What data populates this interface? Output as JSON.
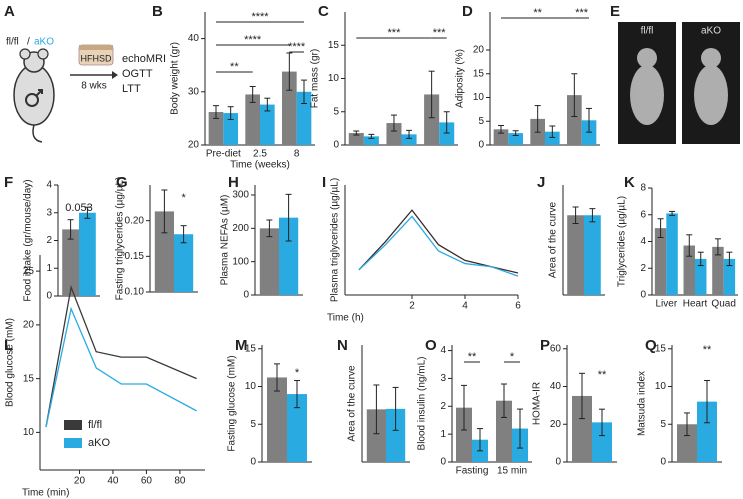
{
  "schematic": {
    "label": "A",
    "genotype": [
      "fl/fl",
      "/",
      "aKO"
    ],
    "diet": "HFHSD",
    "duration": "8 wks",
    "tests": [
      "echoMRI",
      "OGTT",
      "LTT"
    ]
  },
  "images": {
    "label": "E",
    "captions": [
      "fl/fl",
      "aKO"
    ]
  },
  "chart_data": [
    {
      "type": "bar",
      "label": "B",
      "ylabel": "Body weight (gr)",
      "xlabel": "Time (weeks)",
      "categories": [
        "Pre-diet",
        "2.5",
        "8"
      ],
      "series": [
        {
          "color": "#808080",
          "values": [
            26.2,
            29.5,
            33.8
          ],
          "errors": [
            1.2,
            1.5,
            3.5
          ]
        },
        {
          "color": "#29abe2",
          "values": [
            26,
            27.6,
            30
          ],
          "errors": [
            1.2,
            1.2,
            2.2
          ]
        }
      ],
      "ylim": [
        20,
        45
      ],
      "yticks": [
        20,
        30,
        40
      ],
      "annotations": [
        {
          "text": "****"
        },
        {
          "text": "****"
        },
        {
          "text": "**"
        },
        {
          "text": "****"
        }
      ]
    },
    {
      "type": "bar",
      "label": "C",
      "ylabel": "Fat mass (gr)",
      "categories": [
        null,
        null,
        null
      ],
      "series": [
        {
          "color": "#808080",
          "values": [
            1.8,
            3.3,
            7.6
          ],
          "errors": [
            0.3,
            1.2,
            3.5
          ]
        },
        {
          "color": "#29abe2",
          "values": [
            1.3,
            1.6,
            3.4
          ],
          "errors": [
            0.3,
            0.6,
            1.6
          ]
        }
      ],
      "ylim": [
        0,
        20
      ],
      "yticks": [
        0,
        5,
        10,
        15
      ],
      "annotations": [
        {
          "text": "***"
        },
        {
          "text": "***"
        }
      ]
    },
    {
      "type": "bar",
      "label": "D",
      "ylabel": "Adiposity (%)",
      "categories": [
        null,
        null,
        null
      ],
      "series": [
        {
          "color": "#808080",
          "values": [
            3.3,
            5.5,
            10.5
          ],
          "errors": [
            0.8,
            2.8,
            4.5
          ]
        },
        {
          "color": "#29abe2",
          "values": [
            2.5,
            2.8,
            5.2
          ],
          "errors": [
            0.5,
            1.2,
            2.5
          ]
        }
      ],
      "ylim": [
        0,
        28
      ],
      "yticks": [
        0,
        5,
        10,
        15,
        20
      ],
      "annotations": [
        {
          "text": "**"
        },
        {
          "text": "***"
        }
      ]
    },
    {
      "type": "bar",
      "label": "F",
      "ylabel": "Food intake (gr/mouse/day)",
      "categories": [
        null
      ],
      "series": [
        {
          "color": "#808080",
          "values": [
            2.4
          ],
          "errors": [
            0.35
          ]
        },
        {
          "color": "#29abe2",
          "values": [
            3.0
          ],
          "errors": [
            0.2
          ]
        }
      ],
      "ylim": [
        0,
        4
      ],
      "yticks": [
        0,
        1,
        2,
        3,
        4
      ],
      "annotations": [
        {
          "text": "0.053"
        }
      ]
    },
    {
      "type": "bar",
      "label": "G",
      "ylabel": "Fasting triglycerides (µg/µL)",
      "categories": [
        null
      ],
      "series": [
        {
          "color": "#808080",
          "values": [
            0.213
          ],
          "errors": [
            0.03
          ]
        },
        {
          "color": "#29abe2",
          "values": [
            0.181
          ],
          "errors": [
            0.012
          ]
        }
      ],
      "ylim": [
        0.1,
        0.25
      ],
      "yticks": [
        {
          "value": 0.1,
          "label": "0.10"
        },
        {
          "value": 0.15,
          "label": "0.15"
        },
        {
          "value": 0.2,
          "label": "0.20"
        }
      ],
      "annotations": [
        {
          "text": "*"
        }
      ]
    },
    {
      "type": "bar",
      "label": "H",
      "ylabel": "Plasma NEFAs (µM)",
      "categories": [
        null
      ],
      "series": [
        {
          "color": "#808080",
          "values": [
            200
          ],
          "errors": [
            25
          ]
        },
        {
          "color": "#29abe2",
          "values": [
            232
          ],
          "errors": [
            70
          ]
        }
      ],
      "ylim": [
        0,
        330
      ],
      "yticks": [
        0,
        100,
        200,
        300
      ]
    },
    {
      "type": "line",
      "label": "I",
      "ylabel": "Plasma triglycerides (µg/µL)",
      "xlabel": "Time (h)",
      "x": [
        0,
        1,
        2,
        3,
        4,
        5,
        6
      ],
      "series": [
        {
          "color": "#3a2a2a",
          "values": [
            0.18,
            0.27,
            0.37,
            0.26,
            0.21,
            0.19,
            0.17
          ]
        },
        {
          "color": "#29abe2",
          "values": [
            0.18,
            0.26,
            0.35,
            0.24,
            0.2,
            0.19,
            0.16
          ]
        }
      ],
      "xlim": [
        0,
        6
      ],
      "xticks": [
        2,
        4,
        6
      ],
      "ylim": [
        0.1,
        0.45
      ]
    },
    {
      "type": "bar",
      "label": "J",
      "ylabel": "Area of the curve",
      "categories": [
        null
      ],
      "series": [
        {
          "color": "#808080",
          "values": [
            1.45
          ],
          "errors": [
            0.15
          ]
        },
        {
          "color": "#29abe2",
          "values": [
            1.45
          ],
          "errors": [
            0.12
          ]
        }
      ],
      "ylim": [
        0,
        2
      ]
    },
    {
      "type": "bar",
      "label": "K",
      "ylabel": "Triglycerides (µg/µL)",
      "categories": [
        "Liver",
        "Heart",
        "Quad"
      ],
      "series": [
        {
          "color": "#808080",
          "values": [
            5,
            3.7,
            3.6
          ],
          "errors": [
            0.7,
            0.8,
            0.6
          ]
        },
        {
          "color": "#29abe2",
          "values": [
            6.1,
            2.7,
            2.7
          ],
          "errors": [
            0.15,
            0.5,
            0.5
          ]
        }
      ],
      "ylim": [
        0,
        8
      ],
      "yticks": [
        0,
        2,
        4,
        6,
        8
      ]
    },
    {
      "type": "line",
      "label": "L",
      "ylabel": "Blood glucose (mM)",
      "xlabel": "Time (min)",
      "x": [
        0,
        15,
        30,
        45,
        60,
        90
      ],
      "series": [
        {
          "name": "fl/fl",
          "color": "#3a3a3a",
          "values": [
            10.5,
            23.5,
            17.5,
            17,
            17,
            15
          ]
        },
        {
          "name": "aKO",
          "color": "#29abe2",
          "values": [
            10.5,
            21.5,
            16,
            14.5,
            14.5,
            12
          ]
        }
      ],
      "xlim": [
        0,
        95
      ],
      "xticks": [
        20,
        40,
        60,
        80
      ],
      "ylim": [
        6.5,
        26.5
      ],
      "yticks": [
        10,
        15,
        20,
        25
      ],
      "legend": "lower left"
    },
    {
      "type": "bar",
      "label": "M",
      "ylabel": "Fasting glucose (mM)",
      "categories": [
        null
      ],
      "series": [
        {
          "color": "#808080",
          "values": [
            11.2
          ],
          "errors": [
            1.8
          ]
        },
        {
          "color": "#29abe2",
          "values": [
            9
          ],
          "errors": [
            1.8
          ]
        }
      ],
      "ylim": [
        0,
        15.5
      ],
      "yticks": [
        0,
        5,
        10,
        15
      ],
      "annotations": [
        {
          "text": "*"
        }
      ]
    },
    {
      "type": "bar",
      "label": "N",
      "ylabel": "Area of the curve",
      "categories": [
        null
      ],
      "series": [
        {
          "color": "#808080",
          "values": [
            540
          ],
          "errors": [
            250
          ]
        },
        {
          "color": "#29abe2",
          "values": [
            545
          ],
          "errors": [
            220
          ]
        }
      ],
      "ylim": [
        0,
        1200
      ]
    },
    {
      "type": "bar",
      "label": "O",
      "ylabel": "Blood insulin (ng/mL)",
      "categories": [
        "Fasting",
        "15 min"
      ],
      "series": [
        {
          "color": "#808080",
          "values": [
            1.95,
            2.2
          ],
          "errors": [
            0.8,
            0.6
          ]
        },
        {
          "color": "#29abe2",
          "values": [
            0.8,
            1.2
          ],
          "errors": [
            0.4,
            0.7
          ]
        }
      ],
      "ylim": [
        0,
        4.2
      ],
      "yticks": [
        0,
        1,
        2,
        3,
        4
      ],
      "annotations": [
        {
          "text": "**"
        },
        {
          "text": "*"
        }
      ]
    },
    {
      "type": "bar",
      "label": "P",
      "ylabel": "HOMA-IR",
      "categories": [
        null
      ],
      "series": [
        {
          "color": "#808080",
          "values": [
            35
          ],
          "errors": [
            12
          ]
        },
        {
          "color": "#29abe2",
          "values": [
            21
          ],
          "errors": [
            7
          ]
        }
      ],
      "ylim": [
        0,
        62
      ],
      "yticks": [
        0,
        20,
        40,
        60
      ],
      "annotations": [
        {
          "text": "**"
        }
      ]
    },
    {
      "type": "bar",
      "label": "Q",
      "ylabel": "Matsuda index",
      "categories": [
        null
      ],
      "series": [
        {
          "color": "#808080",
          "values": [
            5
          ],
          "errors": [
            1.5
          ]
        },
        {
          "color": "#29abe2",
          "values": [
            8
          ],
          "errors": [
            2.8
          ]
        }
      ],
      "ylim": [
        0,
        15.5
      ],
      "yticks": [
        0,
        5,
        10,
        15
      ],
      "annotations": [
        {
          "text": "**"
        }
      ]
    }
  ]
}
